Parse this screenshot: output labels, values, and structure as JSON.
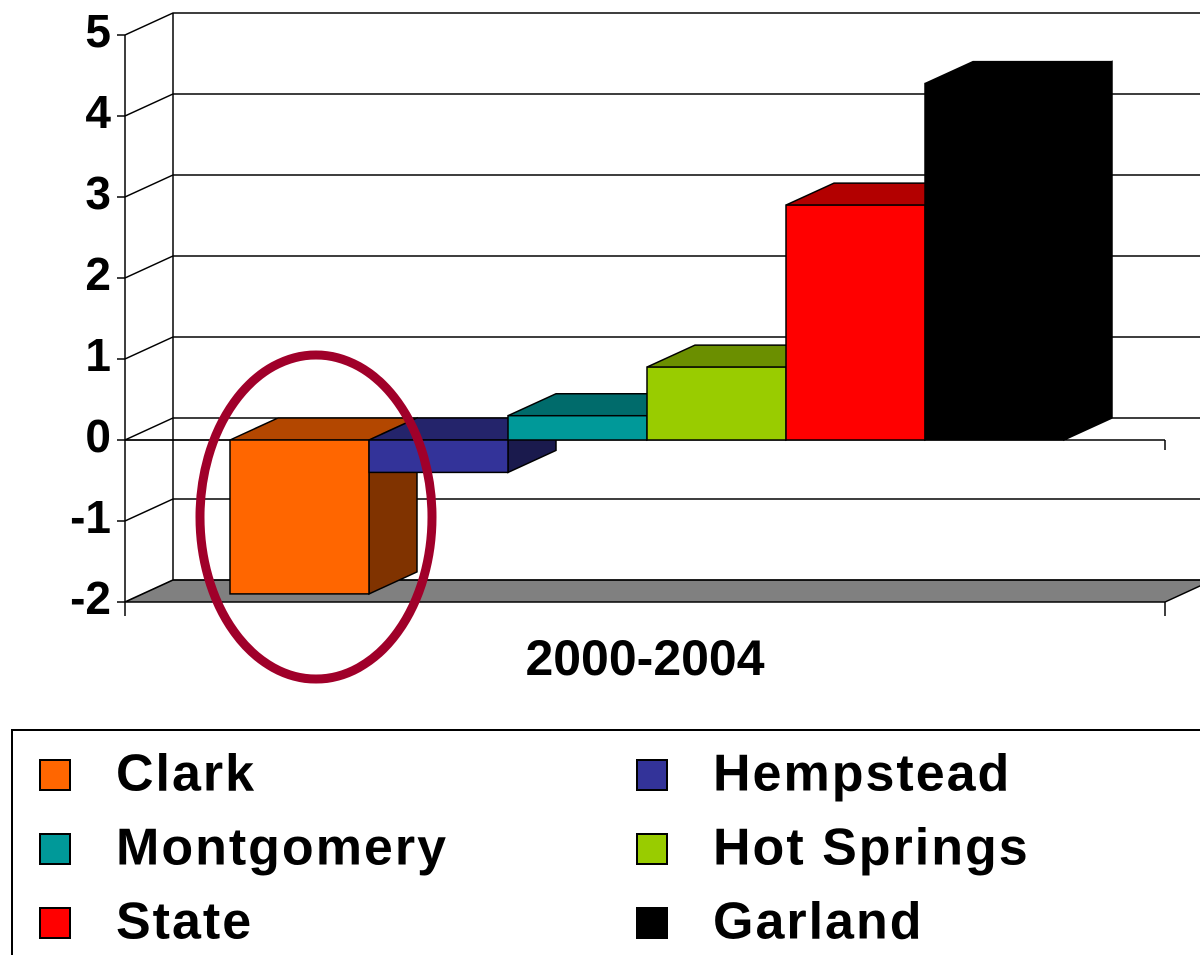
{
  "chart_data": {
    "type": "bar3d",
    "categories": [
      "2000-2004"
    ],
    "series": [
      {
        "name": "Clark",
        "color": "#ff6600",
        "values": [
          -1.9
        ]
      },
      {
        "name": "Hempstead",
        "color": "#333399",
        "values": [
          -0.4
        ]
      },
      {
        "name": "Montgomery",
        "color": "#009999",
        "values": [
          0.3
        ]
      },
      {
        "name": "Hot Springs",
        "color": "#99cc00",
        "values": [
          0.9
        ]
      },
      {
        "name": "State",
        "color": "#ff0000",
        "values": [
          2.9
        ]
      },
      {
        "name": "Garland",
        "color": "#000000",
        "values": [
          4.4
        ]
      }
    ],
    "ylim": [
      -2,
      5
    ],
    "yticks": [
      -2,
      -1,
      0,
      1,
      2,
      3,
      4,
      5
    ],
    "grid": true
  }
}
